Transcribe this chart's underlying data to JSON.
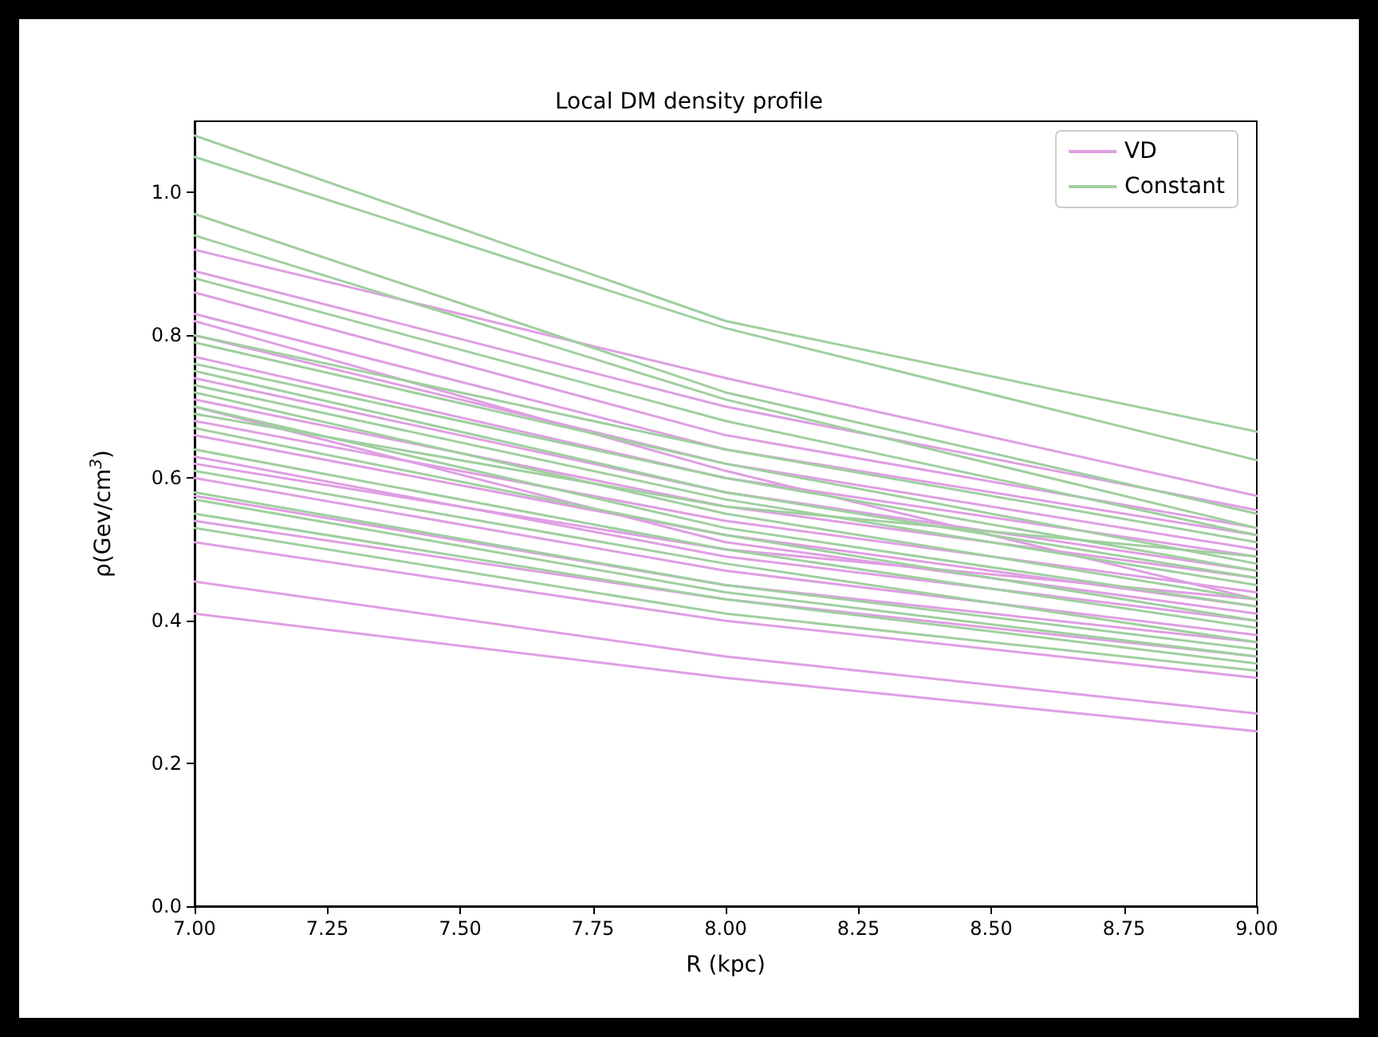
{
  "chart_data": {
    "type": "line",
    "title": "Local DM density profile",
    "xlabel": "R (kpc)",
    "ylabel": "ρ(Gev/cm$^{3}$)",
    "x": [
      7,
      8,
      9
    ],
    "xlim": [
      7,
      9
    ],
    "xticks": [
      {
        "value": 7,
        "label": "7.00"
      },
      {
        "value": 7.25,
        "label": "7.25"
      },
      {
        "value": 7.5,
        "label": "7.50"
      },
      {
        "value": 7.75,
        "label": "7.75"
      },
      {
        "value": 8,
        "label": "8.00"
      },
      {
        "value": 8.25,
        "label": "8.25"
      },
      {
        "value": 8.5,
        "label": "8.50"
      },
      {
        "value": 8.75,
        "label": "8.75"
      },
      {
        "value": 9,
        "label": "9.00"
      }
    ],
    "ylim": [
      0,
      1.1
    ],
    "yticks": [
      {
        "value": 0,
        "label": "0.0"
      },
      {
        "value": 0.2,
        "label": "0.2"
      },
      {
        "value": 0.4,
        "label": "0.4"
      },
      {
        "value": 0.6,
        "label": "0.6"
      },
      {
        "value": 0.8,
        "label": "0.8"
      },
      {
        "value": 1,
        "label": "1.0"
      }
    ],
    "grid": false,
    "legend": "top right",
    "marker": "none",
    "line_style": "solid",
    "series": [
      {
        "name": "VD",
        "color": "#df9ee3",
        "values": [
          0.41,
          0.32,
          0.245
        ]
      },
      {
        "color": "#df9ee3",
        "values": [
          0.455,
          0.35,
          0.27
        ]
      },
      {
        "color": "#df9ee3",
        "values": [
          0.51,
          0.4,
          0.32
        ]
      },
      {
        "color": "#df9ee3",
        "values": [
          0.54,
          0.43,
          0.35
        ]
      },
      {
        "color": "#df9ee3",
        "values": [
          0.575,
          0.45,
          0.37
        ]
      },
      {
        "color": "#df9ee3",
        "values": [
          0.6,
          0.47,
          0.38
        ]
      },
      {
        "color": "#df9ee3",
        "values": [
          0.63,
          0.49,
          0.4
        ]
      },
      {
        "color": "#df9ee3",
        "values": [
          0.66,
          0.52,
          0.42
        ]
      },
      {
        "color": "#df9ee3",
        "values": [
          0.68,
          0.54,
          0.44
        ]
      },
      {
        "color": "#df9ee3",
        "values": [
          0.71,
          0.56,
          0.46
        ]
      },
      {
        "color": "#df9ee3",
        "values": [
          0.74,
          0.58,
          0.47
        ]
      },
      {
        "color": "#df9ee3",
        "values": [
          0.77,
          0.6,
          0.49
        ]
      },
      {
        "color": "#df9ee3",
        "values": [
          0.8,
          0.62,
          0.5
        ]
      },
      {
        "color": "#df9ee3",
        "values": [
          0.83,
          0.64,
          0.52
        ]
      },
      {
        "color": "#df9ee3",
        "values": [
          0.86,
          0.66,
          0.53
        ]
      },
      {
        "color": "#df9ee3",
        "values": [
          0.89,
          0.7,
          0.555
        ]
      },
      {
        "color": "#df9ee3",
        "values": [
          0.92,
          0.74,
          0.575
        ]
      },
      {
        "color": "#df9ee3",
        "values": [
          0.82,
          0.61,
          0.43
        ]
      },
      {
        "color": "#df9ee3",
        "values": [
          0.7,
          0.51,
          0.41
        ]
      },
      {
        "color": "#df9ee3",
        "values": [
          0.62,
          0.5,
          0.43
        ]
      },
      {
        "name": "Constant",
        "color": "#9fcf9f",
        "values": [
          1.08,
          0.82,
          0.665
        ]
      },
      {
        "color": "#9fcf9f",
        "values": [
          1.05,
          0.81,
          0.625
        ]
      },
      {
        "color": "#9fcf9f",
        "values": [
          0.97,
          0.72,
          0.55
        ]
      },
      {
        "color": "#9fcf9f",
        "values": [
          0.94,
          0.71,
          0.53
        ]
      },
      {
        "color": "#9fcf9f",
        "values": [
          0.88,
          0.68,
          0.52
        ]
      },
      {
        "color": "#9fcf9f",
        "values": [
          0.8,
          0.64,
          0.51
        ]
      },
      {
        "color": "#9fcf9f",
        "values": [
          0.79,
          0.62,
          0.48
        ]
      },
      {
        "color": "#9fcf9f",
        "values": [
          0.76,
          0.6,
          0.47
        ]
      },
      {
        "color": "#9fcf9f",
        "values": [
          0.73,
          0.57,
          0.45
        ]
      },
      {
        "color": "#9fcf9f",
        "values": [
          0.72,
          0.55,
          0.43
        ]
      },
      {
        "color": "#9fcf9f",
        "values": [
          0.7,
          0.53,
          0.42
        ]
      },
      {
        "color": "#9fcf9f",
        "values": [
          0.67,
          0.52,
          0.4
        ]
      },
      {
        "color": "#9fcf9f",
        "values": [
          0.64,
          0.5,
          0.39
        ]
      },
      {
        "color": "#9fcf9f",
        "values": [
          0.61,
          0.48,
          0.37
        ]
      },
      {
        "color": "#9fcf9f",
        "values": [
          0.58,
          0.45,
          0.36
        ]
      },
      {
        "color": "#9fcf9f",
        "values": [
          0.55,
          0.43,
          0.34
        ]
      },
      {
        "color": "#9fcf9f",
        "values": [
          0.53,
          0.41,
          0.33
        ]
      },
      {
        "color": "#9fcf9f",
        "values": [
          0.69,
          0.56,
          0.49
        ]
      },
      {
        "color": "#9fcf9f",
        "values": [
          0.75,
          0.58,
          0.46
        ]
      },
      {
        "color": "#9fcf9f",
        "values": [
          0.57,
          0.44,
          0.35
        ]
      }
    ]
  }
}
